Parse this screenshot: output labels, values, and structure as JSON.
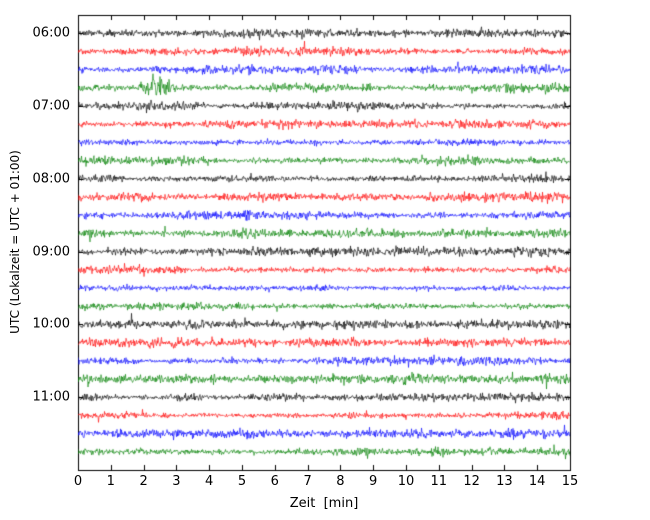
{
  "chart_data": {
    "type": "line",
    "subtype": "helicorder-dayplot",
    "title": "",
    "xlabel": "Zeit  [min]",
    "ylabel": "UTC (Lokalzeit = UTC + 01:00)",
    "xlim": [
      0,
      15
    ],
    "x_ticks": [
      0,
      1,
      2,
      3,
      4,
      5,
      6,
      7,
      8,
      9,
      10,
      11,
      12,
      13,
      14,
      15
    ],
    "minutes_per_row": 15,
    "grid": false,
    "background": "#ffffff",
    "trace_color_cycle": [
      "#000000",
      "#ff0000",
      "#0000ff",
      "#008000"
    ],
    "rows": [
      {
        "time": "06:00",
        "label": "06:00",
        "color": "#000000"
      },
      {
        "time": "06:15",
        "label": "",
        "color": "#ff0000"
      },
      {
        "time": "06:30",
        "label": "",
        "color": "#0000ff"
      },
      {
        "time": "06:45",
        "label": "",
        "color": "#008000"
      },
      {
        "time": "07:00",
        "label": "07:00",
        "color": "#000000"
      },
      {
        "time": "07:15",
        "label": "",
        "color": "#ff0000"
      },
      {
        "time": "07:30",
        "label": "",
        "color": "#0000ff"
      },
      {
        "time": "07:45",
        "label": "",
        "color": "#008000"
      },
      {
        "time": "08:00",
        "label": "08:00",
        "color": "#000000"
      },
      {
        "time": "08:15",
        "label": "",
        "color": "#ff0000"
      },
      {
        "time": "08:30",
        "label": "",
        "color": "#0000ff"
      },
      {
        "time": "08:45",
        "label": "",
        "color": "#008000"
      },
      {
        "time": "09:00",
        "label": "09:00",
        "color": "#000000"
      },
      {
        "time": "09:15",
        "label": "",
        "color": "#ff0000"
      },
      {
        "time": "09:30",
        "label": "",
        "color": "#0000ff"
      },
      {
        "time": "09:45",
        "label": "",
        "color": "#008000"
      },
      {
        "time": "10:00",
        "label": "10:00",
        "color": "#000000"
      },
      {
        "time": "10:15",
        "label": "",
        "color": "#ff0000"
      },
      {
        "time": "10:30",
        "label": "",
        "color": "#0000ff"
      },
      {
        "time": "10:45",
        "label": "",
        "color": "#008000"
      },
      {
        "time": "11:00",
        "label": "11:00",
        "color": "#000000"
      },
      {
        "time": "11:15",
        "label": "",
        "color": "#ff0000"
      },
      {
        "time": "11:30",
        "label": "",
        "color": "#0000ff"
      },
      {
        "time": "11:45",
        "label": "",
        "color": "#008000"
      }
    ],
    "event": {
      "row_time": "06:45",
      "row_index": 3,
      "start_min": 1.7,
      "peak_min": 2.2,
      "end_min": 3.9,
      "amplitude_factor": 4.5
    }
  }
}
